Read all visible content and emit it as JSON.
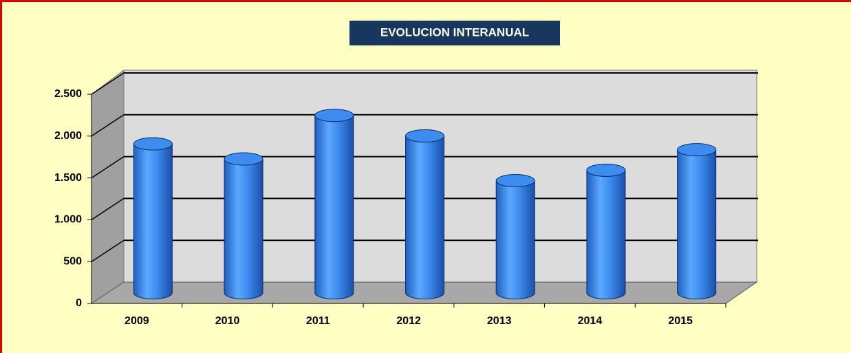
{
  "chart_data": {
    "type": "bar",
    "title": "EVOLUCION INTERANUAL",
    "categories": [
      "2009",
      "2010",
      "2011",
      "2012",
      "2013",
      "2014",
      "2015"
    ],
    "values": [
      1780,
      1600,
      2120,
      1875,
      1340,
      1465,
      1710
    ],
    "color": "#3d8cf0",
    "ylim": [
      0,
      2500
    ],
    "yticks": [
      0,
      500,
      {
        "value": 1000,
        "label": "1.000"
      },
      {
        "value": 1500,
        "label": "1.500"
      },
      {
        "value": 2000,
        "label": "2.000"
      },
      {
        "value": 2500,
        "label": "2.500"
      }
    ],
    "grid": true
  }
}
